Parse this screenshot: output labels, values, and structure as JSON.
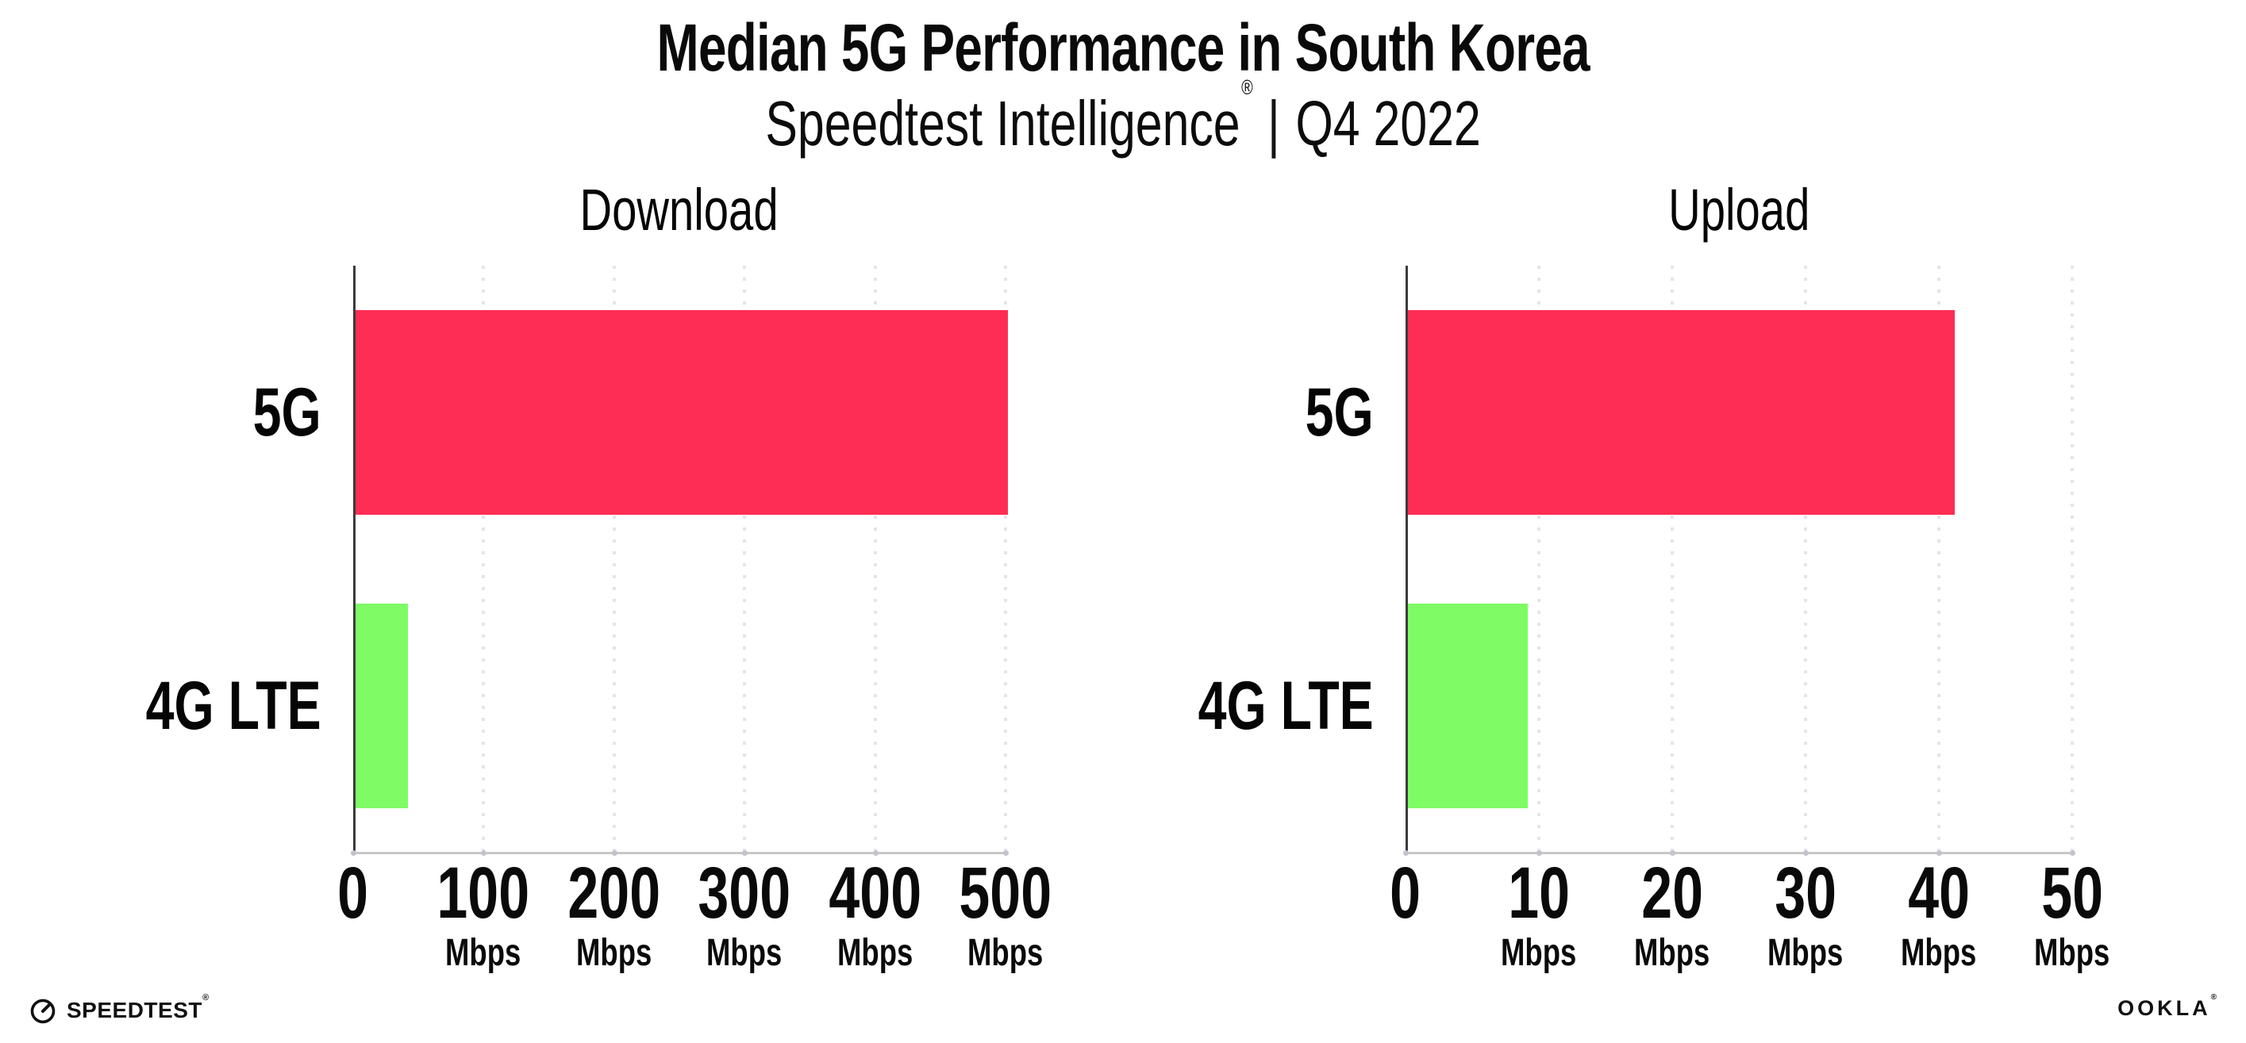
{
  "header": {
    "title": "Median 5G Performance in South Korea",
    "subtitle_brand": "Speedtest Intelligence",
    "subtitle_registered": "®",
    "subtitle_separator": "|",
    "subtitle_period": "Q4 2022"
  },
  "chart_data": [
    {
      "type": "bar",
      "orientation": "horizontal",
      "title": "Download",
      "categories": [
        "5G",
        "4G LTE"
      ],
      "values": [
        500,
        40
      ],
      "unit": "Mbps",
      "xlim": [
        0,
        500
      ],
      "xticks": [
        0,
        100,
        200,
        300,
        400,
        500
      ],
      "tick_unit": "Mbps",
      "grid": "dotted-vertical-major",
      "legend": "none",
      "bar_colors": [
        "#FE2D55",
        "#7FFB65"
      ]
    },
    {
      "type": "bar",
      "orientation": "horizontal",
      "title": "Upload",
      "categories": [
        "5G",
        "4G LTE"
      ],
      "values": [
        41,
        9
      ],
      "unit": "Mbps",
      "xlim": [
        0,
        50
      ],
      "xticks": [
        0,
        10,
        20,
        30,
        40,
        50
      ],
      "tick_unit": "Mbps",
      "grid": "dotted-vertical-major",
      "legend": "none",
      "bar_colors": [
        "#FE2D55",
        "#7FFB65"
      ]
    }
  ],
  "footer": {
    "speedtest_wordmark": "SPEEDTEST",
    "speedtest_registered": "®",
    "ookla_wordmark": "OOKLA",
    "ookla_registered": "®"
  },
  "colors": {
    "background": "#FFFFFF",
    "text": "#0A0A0A",
    "bar_5g": "#FE2D55",
    "bar_4g_lte": "#7FFB65",
    "grid_dots": "#E4E4EC",
    "x_axis_line": "#C8C8C8",
    "y_axis_line": "#3B3B3B"
  }
}
